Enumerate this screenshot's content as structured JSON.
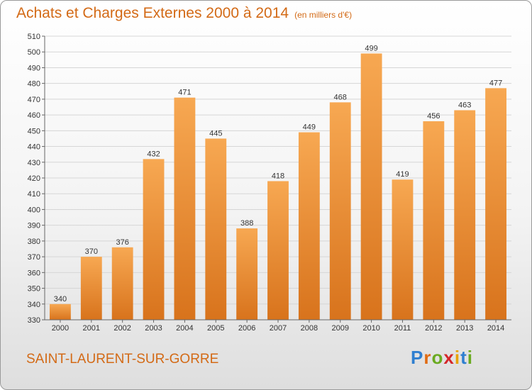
{
  "title": "Achats et Charges Externes 2000 à 2014",
  "subtitle": "(en milliers d'€)",
  "commune": "SAINT-LAURENT-SUR-GORRE",
  "logo": {
    "letters": [
      "P",
      "r",
      "o",
      "x",
      "i",
      "t",
      "i"
    ],
    "colors": [
      "#2f7fd0",
      "#e06b12",
      "#6aaa20",
      "#d4262a",
      "#e8a200",
      "#2f7fd0",
      "#6aaa20"
    ]
  },
  "colors": {
    "bar": "#f39a3e",
    "bar_dark": "#d9741d",
    "text_accent": "#d36a16",
    "grid": "#d6d6d6"
  },
  "chart_data": {
    "type": "bar",
    "title": "Achats et Charges Externes 2000 à 2014",
    "subtitle": "(en milliers d'€)",
    "categories": [
      "2000",
      "2001",
      "2002",
      "2003",
      "2004",
      "2005",
      "2006",
      "2007",
      "2008",
      "2009",
      "2010",
      "2011",
      "2012",
      "2013",
      "2014"
    ],
    "values": [
      340,
      370,
      376,
      432,
      471,
      445,
      388,
      418,
      449,
      468,
      499,
      419,
      456,
      463,
      477
    ],
    "ylim": [
      330,
      510
    ],
    "yticks": [
      330,
      340,
      350,
      360,
      370,
      380,
      390,
      400,
      410,
      420,
      430,
      440,
      450,
      460,
      470,
      480,
      490,
      500,
      510
    ],
    "grid": true,
    "xlabel": "",
    "ylabel": ""
  }
}
